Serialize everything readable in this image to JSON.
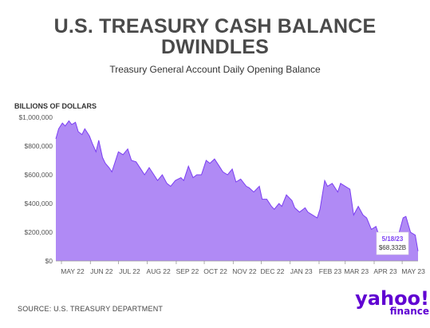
{
  "title_line1": "U.S. TREASURY CASH BALANCE",
  "title_line2": "DWINDLES",
  "subtitle": "Treasury General Account Daily Opening Balance",
  "unit_label": "BILLIONS OF DOLLARS",
  "source": "SOURCE: U.S. TREASURY DEPARTMENT",
  "logo": {
    "main": "yahoo!",
    "sub": "finance"
  },
  "colors": {
    "area": "#b08af5",
    "line": "#7b3ff2",
    "title": "#4a4a4a",
    "brand": "#6001d2"
  },
  "chart_data": {
    "type": "area",
    "title": "",
    "xlabel": "",
    "ylabel": "BILLIONS OF DOLLARS",
    "ylim": [
      0,
      1000000
    ],
    "y_ticks": [
      0,
      200000,
      400000,
      600000,
      800000,
      1000000
    ],
    "y_tick_labels": [
      "$0",
      "$200,000",
      "$400,000",
      "$600,000",
      "$800,000",
      "$1,000,000"
    ],
    "x_tick_labels": [
      "MAY 22",
      "JUN 22",
      "JUL 22",
      "AUG 22",
      "SEP 22",
      "OCT 22",
      "NOV 22",
      "DEC 22",
      "JAN 23",
      "FEB 23",
      "MAR 23",
      "APR 23",
      "MAY 23"
    ],
    "x_tick_dates": [
      "2022-05-01",
      "2022-06-01",
      "2022-07-01",
      "2022-08-01",
      "2022-09-01",
      "2022-10-01",
      "2022-11-01",
      "2022-12-01",
      "2023-01-01",
      "2023-02-01",
      "2023-03-01",
      "2023-04-01",
      "2023-05-01"
    ],
    "x_range": [
      "2022-04-25",
      "2023-05-18"
    ],
    "grid": false,
    "annotation": {
      "date": "5/18/23",
      "value": "$68,332B"
    },
    "series": [
      {
        "x": [
          "2022-04-25",
          "2022-04-28",
          "2022-05-02",
          "2022-05-05",
          "2022-05-09",
          "2022-05-12",
          "2022-05-16",
          "2022-05-19",
          "2022-05-23",
          "2022-05-26",
          "2022-05-31",
          "2022-06-03",
          "2022-06-07",
          "2022-06-10",
          "2022-06-14",
          "2022-06-17",
          "2022-06-21",
          "2022-06-24",
          "2022-06-28",
          "2022-07-01",
          "2022-07-06",
          "2022-07-11",
          "2022-07-15",
          "2022-07-20",
          "2022-07-25",
          "2022-07-29",
          "2022-08-03",
          "2022-08-08",
          "2022-08-12",
          "2022-08-17",
          "2022-08-22",
          "2022-08-26",
          "2022-08-31",
          "2022-09-06",
          "2022-09-09",
          "2022-09-14",
          "2022-09-19",
          "2022-09-23",
          "2022-09-28",
          "2022-10-03",
          "2022-10-07",
          "2022-10-12",
          "2022-10-17",
          "2022-10-21",
          "2022-10-26",
          "2022-10-31",
          "2022-11-04",
          "2022-11-09",
          "2022-11-15",
          "2022-11-18",
          "2022-11-23",
          "2022-11-29",
          "2022-12-02",
          "2022-12-07",
          "2022-12-12",
          "2022-12-15",
          "2022-12-20",
          "2022-12-23",
          "2022-12-28",
          "2023-01-03",
          "2023-01-06",
          "2023-01-11",
          "2023-01-17",
          "2023-01-20",
          "2023-01-25",
          "2023-01-30",
          "2023-02-02",
          "2023-02-07",
          "2023-02-10",
          "2023-02-15",
          "2023-02-21",
          "2023-02-24",
          "2023-03-01",
          "2023-03-06",
          "2023-03-10",
          "2023-03-15",
          "2023-03-20",
          "2023-03-24",
          "2023-03-29",
          "2023-04-03",
          "2023-04-06",
          "2023-04-11",
          "2023-04-14",
          "2023-04-19",
          "2023-04-24",
          "2023-04-27",
          "2023-05-02",
          "2023-05-05",
          "2023-05-10",
          "2023-05-15",
          "2023-05-18"
        ],
        "values": [
          850000,
          920000,
          960000,
          940000,
          975000,
          950000,
          965000,
          900000,
          880000,
          920000,
          870000,
          820000,
          760000,
          840000,
          720000,
          680000,
          650000,
          620000,
          700000,
          760000,
          740000,
          780000,
          700000,
          690000,
          640000,
          600000,
          650000,
          600000,
          560000,
          600000,
          540000,
          520000,
          560000,
          580000,
          560000,
          660000,
          580000,
          600000,
          600000,
          700000,
          680000,
          710000,
          660000,
          620000,
          600000,
          640000,
          550000,
          570000,
          520000,
          510000,
          480000,
          520000,
          430000,
          430000,
          380000,
          360000,
          400000,
          380000,
          460000,
          420000,
          370000,
          340000,
          370000,
          340000,
          320000,
          300000,
          360000,
          560000,
          520000,
          540000,
          480000,
          540000,
          520000,
          500000,
          320000,
          380000,
          320000,
          300000,
          220000,
          240000,
          180000,
          170000,
          190000,
          170000,
          160000,
          180000,
          300000,
          310000,
          200000,
          180000,
          68332
        ]
      }
    ]
  }
}
